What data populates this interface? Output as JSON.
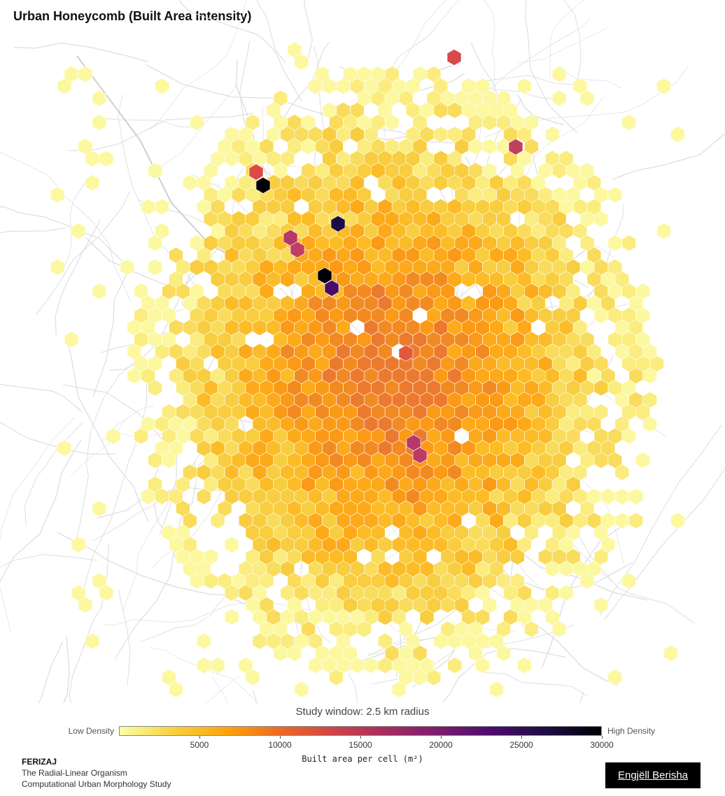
{
  "title": "Urban Honeycomb (Built Area Intensity)",
  "map": {
    "description_layer": "hexbin over road network",
    "hexagon_fill_scale": "inferno_r",
    "road_color": "#dedede"
  },
  "legend": {
    "study_window": "Study window: 2.5 km radius",
    "low_label": "Low Density",
    "high_label": "High Density",
    "ticks": [
      "5000",
      "10000",
      "15000",
      "20000",
      "25000",
      "30000"
    ],
    "tick_values": [
      5000,
      10000,
      15000,
      20000,
      25000,
      30000
    ],
    "range": [
      0,
      30000
    ],
    "axis_label": "Built area per cell (m²)",
    "colors": [
      "#fcffa4",
      "#f7d13d",
      "#fca50a",
      "#ed6925",
      "#cf4446",
      "#a52c60",
      "#781c6d",
      "#4a0c6b",
      "#1b0c41",
      "#000004"
    ]
  },
  "footer": {
    "city": "FERIZAJ",
    "line2": "The Radial-Linear Organism",
    "line3": "Computational Urban Morphology Study"
  },
  "author_button": "Engjëll Berisha"
}
